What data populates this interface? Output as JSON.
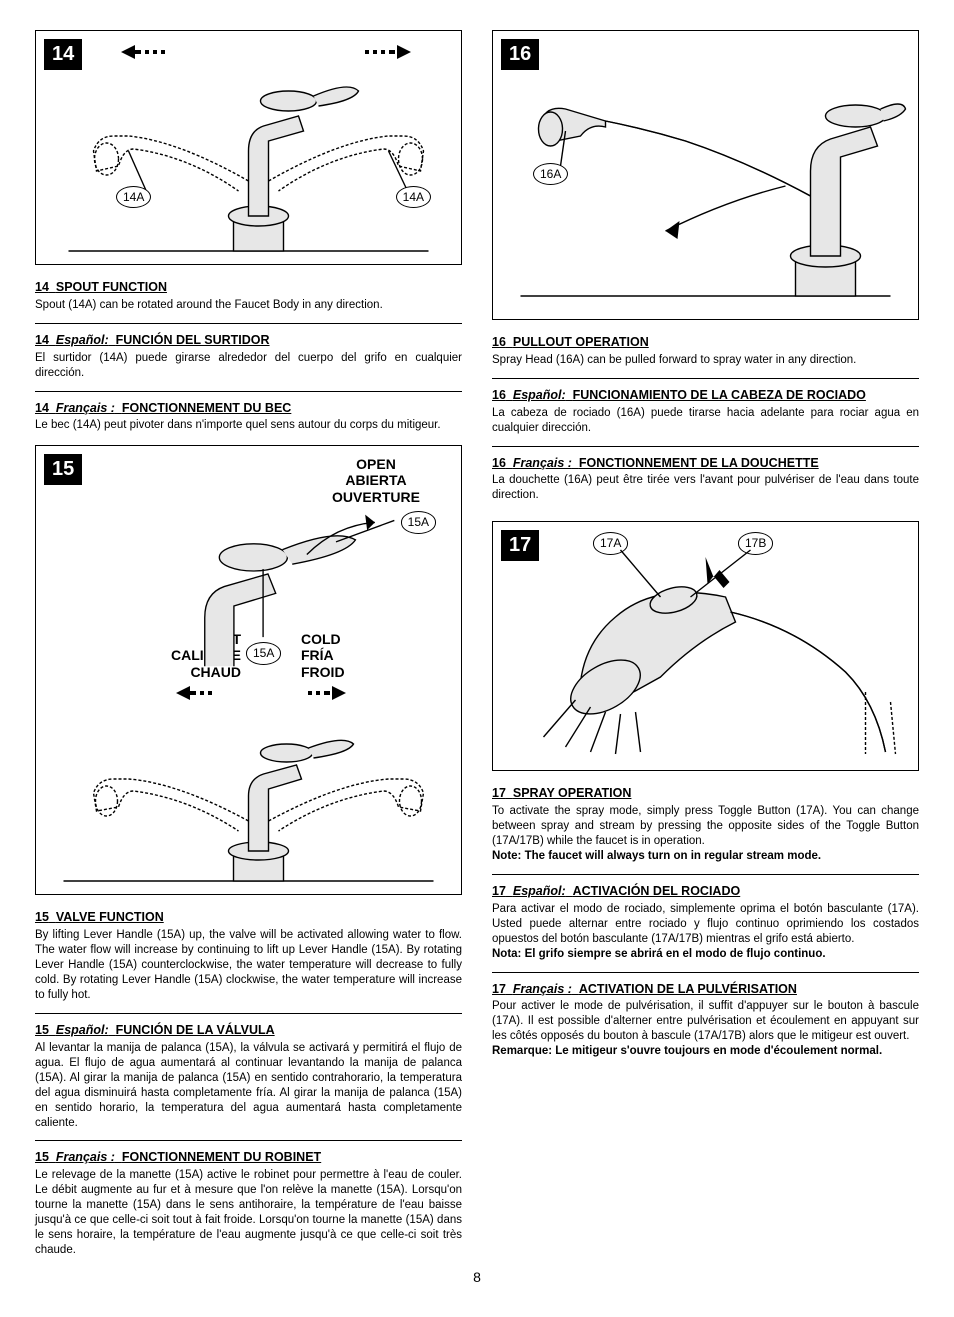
{
  "page_number": "8",
  "figures": {
    "f14": {
      "num": "14",
      "callouts": {
        "left": "14A",
        "right": "14A"
      }
    },
    "f15": {
      "num": "15",
      "open_label": "OPEN\nABIERTA\nOUVERTURE",
      "hot_label": "HOT\nCALIENTE\nCHAUD",
      "cold_label": "COLD\nFRÍA\nFROID",
      "callout_top": "15A",
      "callout_mid": "15A"
    },
    "f16": {
      "num": "16",
      "callout": "16A"
    },
    "f17": {
      "num": "17",
      "callout_a": "17A",
      "callout_b": "17B"
    }
  },
  "sections": {
    "s14_en": {
      "title_num": "14",
      "title_text": "SPOUT  FUNCTION",
      "body": "Spout (14A) can be rotated around the Faucet Body in any direction."
    },
    "s14_es": {
      "title_num": "14",
      "lang": "Español:",
      "title_text": "FUNCIÓN DEL SURTIDOR",
      "body": "El surtidor (14A) puede girarse alrededor del cuerpo del grifo en cualquier dirección."
    },
    "s14_fr": {
      "title_num": "14",
      "lang": "Français :",
      "title_text": "FONCTIONNEMENT DU BEC",
      "body": "Le bec (14A) peut pivoter dans n'importe quel sens autour du corps du mitigeur."
    },
    "s15_en": {
      "title_num": "15",
      "title_text": "VALVE FUNCTION",
      "body": "By lifting Lever Handle (15A) up, the valve will be activated allowing water to flow.  The water flow will increase by continuing to lift up Lever Handle (15A).  By rotating Lever Handle (15A) counterclockwise, the water temperature will decrease to fully cold.  By rotating Lever Handle (15A) clockwise, the water temperature will increase to fully hot."
    },
    "s15_es": {
      "title_num": "15",
      "lang": "Español:",
      "title_text": "FUNCIÓN DE LA VÁLVULA",
      "body": "Al levantar la manija de palanca (15A), la válvula se activará y permitirá el flujo de agua.  El flujo de agua aumentará al continuar levantando la manija de palanca (15A).  Al girar la manija de palanca (15A) en sentido contrahorario, la temperatura del agua disminuirá hasta completamente fría.  Al girar la manija de palanca (15A) en sentido horario, la temperatura del agua aumentará hasta completamente caliente."
    },
    "s15_fr": {
      "title_num": "15",
      "lang": "Français :",
      "title_text": "FONCTIONNEMENT DU ROBINET",
      "body": "Le relevage de la manette (15A) active le robinet pour permettre à l'eau de couler. Le débit augmente au fur et à mesure que l'on relève la manette (15A). Lorsqu'on tourne la manette (15A) dans le sens antihoraire, la température de l'eau baisse jusqu'à ce que celle-ci soit tout à fait froide. Lorsqu'on tourne la manette (15A) dans le sens horaire, la température de l'eau augmente jusqu'à ce que celle-ci soit très chaude."
    },
    "s16_en": {
      "title_num": "16",
      "title_text": "PULLOUT OPERATION",
      "body": "Spray Head (16A) can be pulled forward to spray water in any direction."
    },
    "s16_es": {
      "title_num": "16",
      "lang": "Español:",
      "title_text": "FUNCIONAMIENTO DE LA CABEZA DE ROCIADO",
      "body": "La cabeza de rociado (16A) puede tirarse hacia adelante para rociar agua en cualquier dirección."
    },
    "s16_fr": {
      "title_num": "16",
      "lang": "Français :",
      "title_text": "FONCTIONNEMENT DE LA DOUCHETTE",
      "body": "La douchette (16A) peut être tirée vers l'avant pour pulvériser de l'eau dans toute direction."
    },
    "s17_en": {
      "title_num": "17",
      "title_text": "SPRAY OPERATION",
      "body": "To activate the spray mode, simply press Toggle Button (17A). You can change between spray and stream by pressing the opposite sides of the Toggle Button (17A/17B) while the faucet is in operation.",
      "note": "Note:  The faucet will always turn on in regular stream mode."
    },
    "s17_es": {
      "title_num": "17",
      "lang": "Español:",
      "title_text": "ACTIVACIÓN DEL ROCIADO",
      "body": "Para activar el modo de rociado, simplemente oprima el botón basculante (17A). Usted puede alternar entre rociado y flujo continuo oprimiendo los costados opuestos del botón basculante (17A/17B) mientras el grifo está abierto.",
      "note": " Nota:  El grifo siempre se abrirá en el modo de flujo continuo."
    },
    "s17_fr": {
      "title_num": "17",
      "lang": "Français :",
      "title_text": "ACTIVATION DE LA PULVÉRISATION",
      "body": "Pour activer le mode de pulvérisation, il suffit d'appuyer sur le bouton à bascule (17A). Il est possible d'alterner entre pulvérisation et écoulement en appuyant sur les côtés opposés du bouton à bascule (17A/17B) alors que le mitigeur est ouvert.",
      "note": "Remarque:  Le mitigeur s'ouvre toujours en mode d'écoulement normal."
    }
  }
}
